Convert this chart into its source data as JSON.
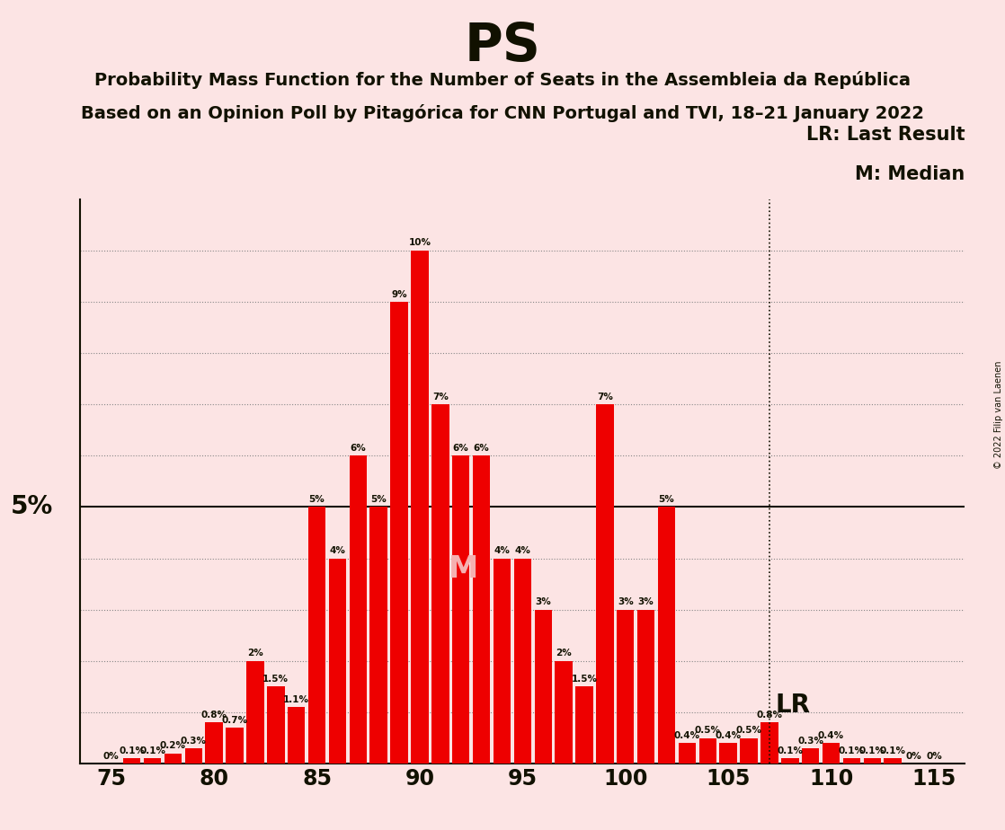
{
  "title": "PS",
  "subtitle1": "Probability Mass Function for the Number of Seats in the Assembleia da República",
  "subtitle2": "Based on an Opinion Poll by Pitagórica for CNN Portugal and TVI, 18–21 January 2022",
  "copyright": "© 2022 Filip van Laenen",
  "ylabel": "5%",
  "background_color": "#fce4e4",
  "bar_color": "#ee0000",
  "axis_line_color": "#111100",
  "text_color": "#111100",
  "lr_seat": 107,
  "median_seat": 91,
  "seats": [
    75,
    76,
    77,
    78,
    79,
    80,
    81,
    82,
    83,
    84,
    85,
    86,
    87,
    88,
    89,
    90,
    91,
    92,
    93,
    94,
    95,
    96,
    97,
    98,
    99,
    100,
    101,
    102,
    103,
    104,
    105,
    106,
    107,
    108,
    109,
    110,
    111,
    112,
    113,
    114,
    115
  ],
  "values": [
    0.0,
    0.1,
    0.1,
    0.2,
    0.3,
    0.8,
    0.7,
    2.0,
    1.5,
    1.1,
    5.0,
    4.0,
    6.0,
    5.0,
    9.0,
    10.0,
    7.0,
    6.0,
    6.0,
    4.0,
    4.0,
    3.0,
    2.0,
    1.5,
    7.0,
    3.0,
    3.0,
    5.0,
    0.4,
    0.5,
    0.4,
    0.5,
    0.8,
    0.1,
    0.3,
    0.4,
    0.1,
    0.1,
    0.1,
    0.0,
    0.0
  ],
  "ylim": [
    0,
    11
  ],
  "grid_y_values": [
    1.0,
    2.0,
    3.0,
    4.0,
    5.0,
    6.0,
    7.0,
    8.0,
    9.0,
    10.0
  ],
  "legend_lr": "LR: Last Result",
  "legend_m": "M: Median",
  "lr_label": "LR",
  "m_label": "M"
}
